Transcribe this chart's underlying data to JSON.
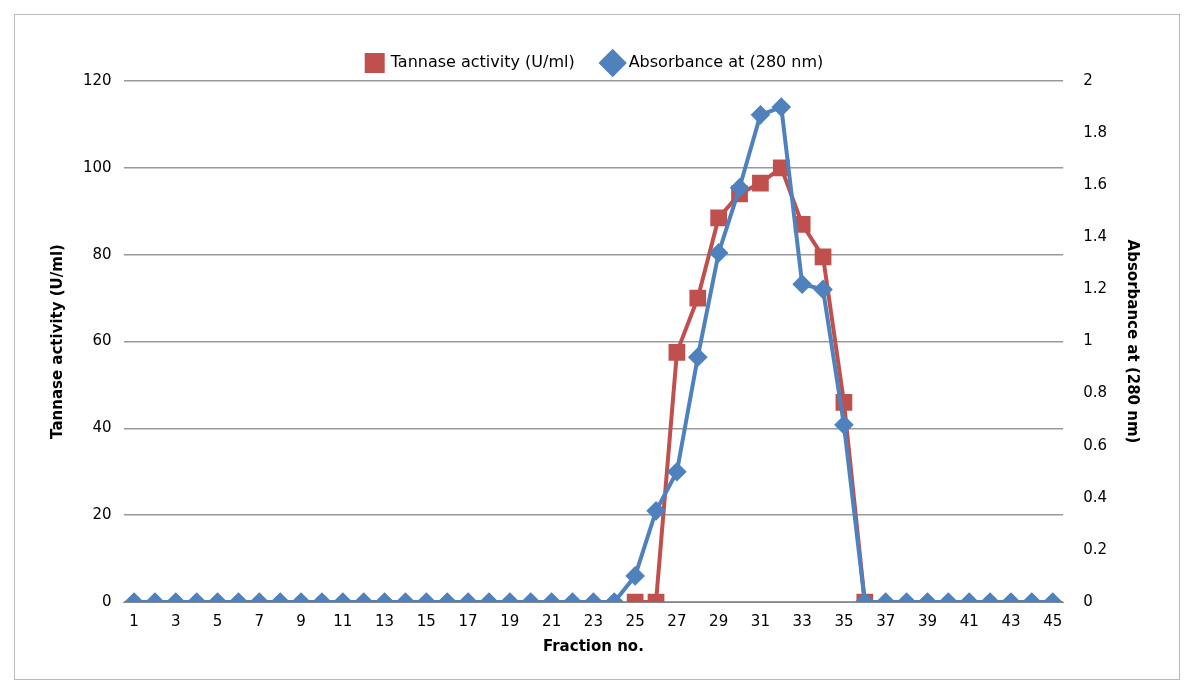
{
  "chart_data": {
    "type": "line",
    "xlabel": "Fraction no.",
    "ylabel": "Tannase activity (U/ml)",
    "y2label": "Absorbance at (280 nm)",
    "x": [
      1,
      2,
      3,
      4,
      5,
      6,
      7,
      8,
      9,
      10,
      11,
      12,
      13,
      14,
      15,
      16,
      17,
      18,
      19,
      20,
      21,
      22,
      23,
      24,
      25,
      26,
      27,
      28,
      29,
      30,
      31,
      32,
      33,
      34,
      35,
      36,
      37,
      38,
      39,
      40,
      41,
      42,
      43,
      44,
      45
    ],
    "xlim": [
      0.5,
      45.5
    ],
    "xticks": [
      1,
      3,
      5,
      7,
      9,
      11,
      13,
      15,
      17,
      19,
      21,
      23,
      25,
      27,
      29,
      31,
      33,
      35,
      37,
      39,
      41,
      43,
      45
    ],
    "series": [
      {
        "name": "Tannase activity (U/ml)",
        "color": "#c0504d",
        "marker": "square",
        "values": [
          null,
          null,
          null,
          null,
          null,
          null,
          null,
          null,
          null,
          null,
          null,
          null,
          null,
          null,
          null,
          null,
          null,
          null,
          null,
          null,
          null,
          null,
          null,
          null,
          0,
          0,
          57.5,
          70,
          88.5,
          94,
          96.5,
          100,
          87,
          79.5,
          46,
          0,
          null,
          null,
          null,
          null,
          null,
          null,
          null,
          null,
          null
        ]
      },
      {
        "name": "Absorbance at (280 nm)",
        "color": "#4f81bd",
        "marker": "diamond",
        "axis": "y2",
        "values": [
          0,
          0,
          0,
          0,
          0,
          0,
          0,
          0,
          0,
          0,
          0,
          0,
          0,
          0,
          0,
          0,
          0,
          0,
          0,
          0,
          0,
          0,
          0,
          0,
          0.1,
          0.35,
          0.5,
          0.94,
          1.34,
          1.59,
          1.87,
          1.9,
          1.22,
          1.2,
          0.68,
          0,
          0,
          0,
          0,
          0,
          0,
          0,
          0,
          0,
          0
        ]
      }
    ],
    "ylim": [
      0,
      120
    ],
    "yticks": [
      0,
      20,
      40,
      60,
      80,
      100,
      120
    ],
    "y2lim": [
      0,
      2
    ],
    "y2ticks": [
      0,
      0.2,
      0.4,
      0.6,
      0.8,
      1,
      1.2,
      1.4,
      1.6,
      1.8,
      2
    ],
    "grid": "y",
    "legend": "top",
    "line_style": "solid"
  }
}
